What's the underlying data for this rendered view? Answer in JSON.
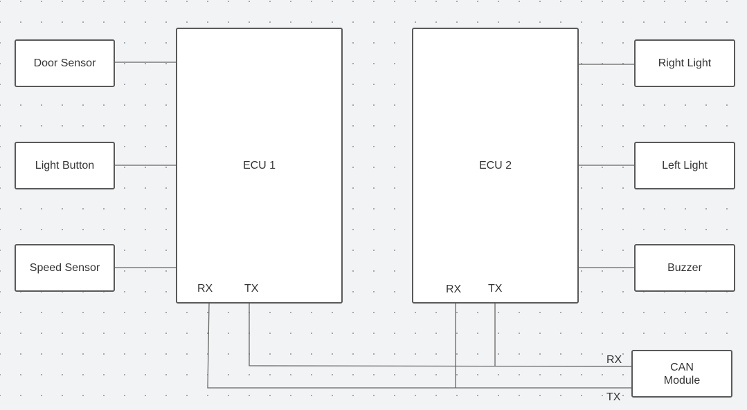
{
  "diagram": {
    "inputs": {
      "door_sensor": "Door Sensor",
      "light_button": "Light Button",
      "speed_sensor": "Speed Sensor"
    },
    "ecu1": {
      "title": "ECU 1",
      "rx": "RX",
      "tx": "TX"
    },
    "ecu2": {
      "title": "ECU 2",
      "rx": "RX",
      "tx": "TX"
    },
    "outputs": {
      "right_light": "Right Light",
      "left_light": "Left Light",
      "buzzer": "Buzzer"
    },
    "can_module": {
      "title": "CAN\nModule",
      "rx": "RX",
      "tx": "TX"
    },
    "colors": {
      "background": "#f2f3f5",
      "stroke": "#595959",
      "wire": "#666666",
      "text": "#333333"
    }
  }
}
